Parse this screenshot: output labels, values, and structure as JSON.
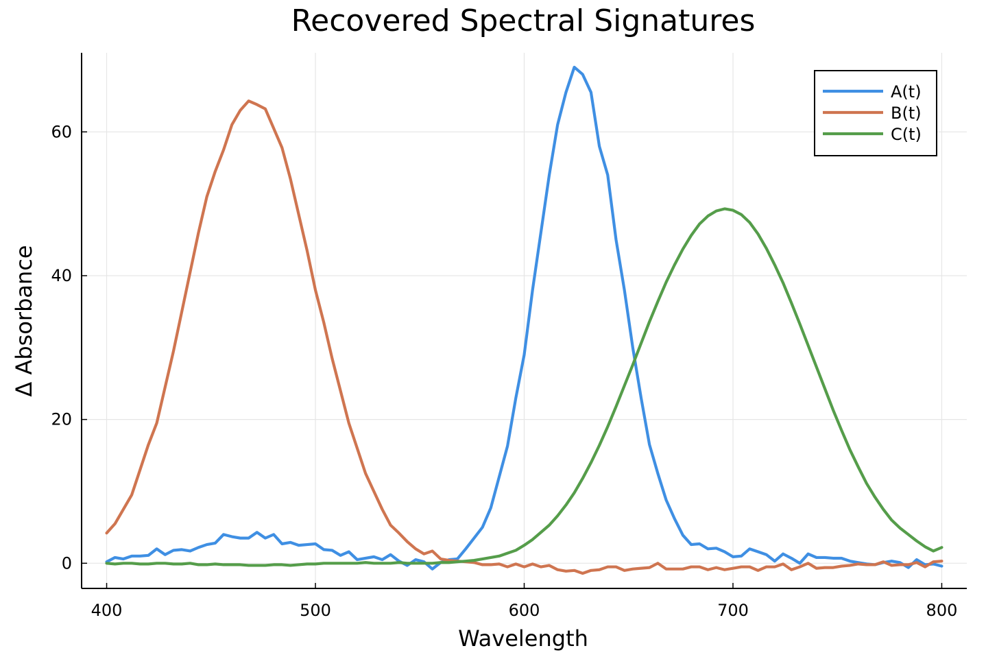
{
  "chart_data": {
    "type": "line",
    "title": "Recovered Spectral Signatures",
    "xlabel": "Wavelength",
    "ylabel": "Δ Absorbance",
    "xlim": [
      388,
      812
    ],
    "ylim": [
      -3.5,
      71
    ],
    "xticks": [
      400,
      500,
      600,
      700,
      800
    ],
    "yticks": [
      0,
      20,
      40,
      60
    ],
    "grid": true,
    "legend_position": "top-right",
    "x": [
      400,
      404,
      408,
      412,
      416,
      420,
      424,
      428,
      432,
      436,
      440,
      444,
      448,
      452,
      456,
      460,
      464,
      468,
      472,
      476,
      480,
      484,
      488,
      492,
      496,
      500,
      504,
      508,
      512,
      516,
      520,
      524,
      528,
      532,
      536,
      540,
      544,
      548,
      552,
      556,
      560,
      564,
      568,
      572,
      576,
      580,
      584,
      588,
      592,
      596,
      600,
      604,
      608,
      612,
      616,
      620,
      624,
      628,
      632,
      636,
      640,
      644,
      648,
      652,
      656,
      660,
      664,
      668,
      672,
      676,
      680,
      684,
      688,
      692,
      696,
      700,
      704,
      708,
      712,
      716,
      720,
      724,
      728,
      732,
      736,
      740,
      744,
      748,
      752,
      756,
      760,
      764,
      768,
      772,
      776,
      780,
      784,
      788,
      792,
      796,
      800
    ],
    "series": [
      {
        "name": "A(t)",
        "color": "#3f8fe3",
        "values": [
          0.2,
          0.8,
          0.6,
          1.0,
          1.0,
          1.1,
          2.0,
          1.2,
          1.8,
          1.9,
          1.7,
          2.2,
          2.6,
          2.8,
          4.0,
          3.7,
          3.5,
          3.5,
          4.3,
          3.5,
          4.0,
          2.7,
          2.9,
          2.5,
          2.6,
          2.7,
          1.9,
          1.8,
          1.1,
          1.6,
          0.5,
          0.7,
          0.9,
          0.5,
          1.2,
          0.3,
          -0.3,
          0.5,
          0.2,
          -0.8,
          0.1,
          0.5,
          0.6,
          2.0,
          3.5,
          5.0,
          7.7,
          12.0,
          16.3,
          23.0,
          29.0,
          38.0,
          46.0,
          54.0,
          61.0,
          65.5,
          69.0,
          68.0,
          65.5,
          58.0,
          54.0,
          45.0,
          38.0,
          30.0,
          23.0,
          16.5,
          12.5,
          8.8,
          6.2,
          3.9,
          2.6,
          2.7,
          2.0,
          2.1,
          1.6,
          0.9,
          1.0,
          2.0,
          1.6,
          1.2,
          0.3,
          1.3,
          0.7,
          0.0,
          1.3,
          0.8,
          0.8,
          0.7,
          0.7,
          0.3,
          0.1,
          -0.1,
          -0.2,
          0.1,
          0.3,
          0.1,
          -0.6,
          0.5,
          -0.2,
          -0.1,
          -0.4
        ]
      },
      {
        "name": "B(t)",
        "color": "#cf7550",
        "values": [
          4.2,
          5.5,
          7.5,
          9.5,
          13.0,
          16.5,
          19.5,
          24.5,
          29.5,
          35.0,
          40.5,
          46.0,
          51.0,
          54.5,
          57.5,
          61.0,
          63.0,
          64.3,
          63.8,
          63.2,
          60.5,
          57.8,
          53.5,
          48.5,
          43.5,
          38.0,
          33.5,
          28.5,
          24.0,
          19.5,
          16.0,
          12.5,
          10.0,
          7.5,
          5.3,
          4.2,
          3.0,
          2.0,
          1.3,
          1.7,
          0.6,
          0.4,
          0.3,
          0.2,
          0.1,
          -0.2,
          -0.2,
          -0.1,
          -0.5,
          -0.1,
          -0.5,
          -0.1,
          -0.5,
          -0.3,
          -0.9,
          -1.1,
          -1.0,
          -1.4,
          -1.0,
          -0.9,
          -0.5,
          -0.5,
          -1.0,
          -0.8,
          -0.7,
          -0.6,
          0.0,
          -0.8,
          -0.8,
          -0.8,
          -0.5,
          -0.5,
          -0.9,
          -0.6,
          -0.9,
          -0.7,
          -0.5,
          -0.5,
          -1.0,
          -0.5,
          -0.5,
          -0.1,
          -0.9,
          -0.5,
          0.0,
          -0.7,
          -0.6,
          -0.6,
          -0.4,
          -0.3,
          -0.1,
          -0.2,
          -0.2,
          0.2,
          -0.3,
          -0.2,
          -0.2,
          0.1,
          -0.5,
          0.2,
          0.3
        ]
      },
      {
        "name": "C(t)",
        "color": "#559d4a",
        "values": [
          0.0,
          -0.1,
          0.0,
          0.0,
          -0.1,
          -0.1,
          0.0,
          0.0,
          -0.1,
          -0.1,
          0.0,
          -0.2,
          -0.2,
          -0.1,
          -0.2,
          -0.2,
          -0.2,
          -0.3,
          -0.3,
          -0.3,
          -0.2,
          -0.2,
          -0.3,
          -0.2,
          -0.1,
          -0.1,
          0.0,
          0.0,
          0.0,
          0.0,
          0.0,
          0.1,
          0.0,
          0.0,
          0.0,
          0.1,
          0.0,
          0.0,
          0.0,
          0.0,
          0.1,
          0.1,
          0.2,
          0.3,
          0.4,
          0.6,
          0.8,
          1.0,
          1.4,
          1.8,
          2.5,
          3.3,
          4.3,
          5.3,
          6.6,
          8.1,
          9.8,
          11.8,
          14.0,
          16.4,
          19.0,
          21.8,
          24.7,
          27.6,
          30.6,
          33.6,
          36.4,
          39.1,
          41.5,
          43.7,
          45.6,
          47.2,
          48.3,
          49.0,
          49.3,
          49.1,
          48.5,
          47.4,
          45.8,
          43.8,
          41.5,
          39.0,
          36.2,
          33.3,
          30.3,
          27.3,
          24.3,
          21.3,
          18.5,
          15.8,
          13.4,
          11.1,
          9.2,
          7.5,
          6.0,
          4.9,
          4.0,
          3.1,
          2.3,
          1.7,
          2.2
        ]
      }
    ]
  }
}
